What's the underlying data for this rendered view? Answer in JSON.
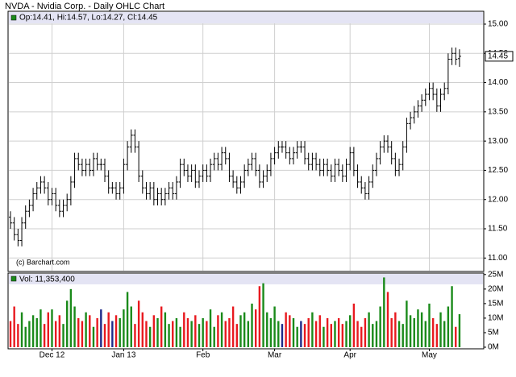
{
  "chart_data": [
    {
      "type": "ohlc",
      "title": "NVDA - Nvidia Corp. - Daily OHLC Chart",
      "legend": "Op:14.41, Hi:14.57, Lo:14.27, Cl:14.45",
      "watermark": "(c) Barchart.com",
      "color": "#000000",
      "grid": true,
      "categories": [
        null,
        null,
        null,
        null,
        null,
        null,
        null,
        null,
        null,
        null,
        null,
        "Dec 12",
        null,
        null,
        null,
        null,
        null,
        null,
        null,
        null,
        null,
        null,
        null,
        null,
        null,
        null,
        null,
        null,
        null,
        null,
        "Jan 13",
        null,
        null,
        null,
        null,
        null,
        null,
        null,
        null,
        null,
        null,
        null,
        null,
        null,
        null,
        null,
        null,
        null,
        null,
        null,
        null,
        "Feb",
        null,
        null,
        null,
        null,
        null,
        null,
        null,
        null,
        null,
        null,
        null,
        null,
        null,
        null,
        null,
        null,
        null,
        null,
        "Mar",
        null,
        null,
        null,
        null,
        null,
        null,
        null,
        null,
        null,
        null,
        null,
        null,
        null,
        null,
        null,
        null,
        null,
        null,
        null,
        "Apr",
        null,
        null,
        null,
        null,
        null,
        null,
        null,
        null,
        null,
        null,
        null,
        null,
        null,
        null,
        null,
        null,
        null,
        null,
        null,
        null,
        "May",
        null,
        null,
        null,
        null,
        null,
        null,
        null,
        null
      ],
      "open": [
        11.7,
        11.6,
        11.4,
        11.3,
        11.6,
        11.8,
        11.9,
        12.1,
        12.2,
        12.3,
        12.2,
        12.0,
        12.1,
        11.9,
        11.8,
        11.9,
        12.0,
        12.3,
        12.7,
        12.6,
        12.5,
        12.6,
        12.5,
        12.7,
        12.6,
        12.6,
        12.4,
        12.2,
        12.2,
        12.1,
        12.2,
        12.6,
        12.9,
        13.1,
        12.9,
        12.4,
        12.2,
        12.1,
        12.2,
        12.0,
        12.1,
        12.0,
        12.1,
        12.2,
        12.1,
        12.3,
        12.6,
        12.5,
        12.4,
        12.5,
        12.3,
        12.4,
        12.5,
        12.4,
        12.6,
        12.7,
        12.6,
        12.8,
        12.7,
        12.4,
        12.3,
        12.2,
        12.3,
        12.5,
        12.6,
        12.7,
        12.5,
        12.3,
        12.4,
        12.5,
        12.7,
        12.8,
        12.9,
        12.9,
        12.8,
        12.7,
        12.8,
        12.9,
        12.9,
        12.7,
        12.6,
        12.7,
        12.6,
        12.5,
        12.6,
        12.5,
        12.4,
        12.6,
        12.5,
        12.4,
        12.6,
        12.8,
        12.5,
        12.3,
        12.2,
        12.1,
        12.3,
        12.5,
        12.7,
        12.9,
        13.0,
        12.9,
        12.7,
        12.5,
        12.6,
        12.9,
        13.3,
        13.4,
        13.5,
        13.6,
        13.7,
        13.8,
        13.9,
        13.8,
        13.6,
        13.8,
        13.9,
        14.4,
        14.5,
        14.41
      ],
      "high": [
        11.8,
        11.7,
        11.5,
        11.7,
        11.9,
        12.0,
        12.2,
        12.3,
        12.4,
        12.4,
        12.3,
        12.2,
        12.2,
        12.0,
        12.0,
        12.1,
        12.4,
        12.8,
        12.8,
        12.7,
        12.7,
        12.7,
        12.8,
        12.8,
        12.7,
        12.7,
        12.5,
        12.3,
        12.3,
        12.3,
        12.7,
        13.0,
        13.2,
        13.2,
        13.0,
        12.5,
        12.3,
        12.3,
        12.3,
        12.2,
        12.2,
        12.2,
        12.3,
        12.3,
        12.4,
        12.7,
        12.7,
        12.6,
        12.6,
        12.6,
        12.5,
        12.6,
        12.6,
        12.7,
        12.8,
        12.8,
        12.9,
        12.9,
        12.8,
        12.5,
        12.4,
        12.4,
        12.6,
        12.7,
        12.8,
        12.8,
        12.6,
        12.5,
        12.6,
        12.8,
        12.9,
        13.0,
        13.0,
        13.0,
        12.9,
        12.9,
        13.0,
        13.0,
        13.0,
        12.8,
        12.8,
        12.8,
        12.7,
        12.7,
        12.7,
        12.6,
        12.7,
        12.7,
        12.6,
        12.7,
        12.9,
        12.9,
        12.6,
        12.4,
        12.3,
        12.4,
        12.6,
        12.8,
        13.0,
        13.1,
        13.1,
        13.0,
        12.8,
        12.7,
        13.0,
        13.4,
        13.5,
        13.6,
        13.7,
        13.8,
        13.9,
        14.0,
        14.0,
        13.9,
        13.9,
        14.0,
        14.5,
        14.6,
        14.6,
        14.57
      ],
      "low": [
        11.5,
        11.3,
        11.2,
        11.2,
        11.5,
        11.7,
        11.8,
        12.0,
        12.1,
        12.1,
        11.9,
        11.9,
        11.8,
        11.7,
        11.7,
        11.8,
        11.9,
        12.2,
        12.5,
        12.4,
        12.4,
        12.4,
        12.4,
        12.5,
        12.5,
        12.3,
        12.1,
        12.1,
        12.0,
        12.0,
        12.1,
        12.5,
        12.8,
        12.8,
        12.3,
        12.1,
        12.0,
        12.0,
        11.9,
        11.9,
        11.9,
        11.9,
        12.0,
        12.0,
        12.0,
        12.2,
        12.4,
        12.3,
        12.3,
        12.2,
        12.2,
        12.3,
        12.3,
        12.3,
        12.5,
        12.5,
        12.5,
        12.6,
        12.3,
        12.2,
        12.1,
        12.1,
        12.2,
        12.4,
        12.5,
        12.4,
        12.2,
        12.2,
        12.3,
        12.4,
        12.6,
        12.7,
        12.8,
        12.7,
        12.6,
        12.6,
        12.7,
        12.8,
        12.6,
        12.5,
        12.5,
        12.5,
        12.4,
        12.4,
        12.4,
        12.3,
        12.3,
        12.4,
        12.3,
        12.3,
        12.5,
        12.4,
        12.2,
        12.1,
        12.0,
        12.0,
        12.2,
        12.4,
        12.6,
        12.8,
        12.8,
        12.6,
        12.4,
        12.4,
        12.5,
        12.8,
        13.2,
        13.3,
        13.4,
        13.5,
        13.6,
        13.7,
        13.7,
        13.5,
        13.5,
        13.7,
        13.8,
        14.3,
        14.3,
        14.27
      ],
      "close": [
        11.6,
        11.4,
        11.3,
        11.6,
        11.8,
        11.9,
        12.1,
        12.2,
        12.3,
        12.2,
        12.0,
        12.1,
        11.9,
        11.8,
        11.9,
        12.0,
        12.3,
        12.7,
        12.6,
        12.5,
        12.6,
        12.5,
        12.7,
        12.6,
        12.6,
        12.4,
        12.2,
        12.2,
        12.1,
        12.2,
        12.6,
        12.9,
        13.1,
        12.9,
        12.4,
        12.2,
        12.1,
        12.2,
        12.0,
        12.1,
        12.0,
        12.1,
        12.2,
        12.1,
        12.3,
        12.6,
        12.5,
        12.4,
        12.5,
        12.3,
        12.4,
        12.5,
        12.4,
        12.6,
        12.7,
        12.6,
        12.8,
        12.7,
        12.4,
        12.3,
        12.2,
        12.3,
        12.5,
        12.6,
        12.7,
        12.5,
        12.3,
        12.4,
        12.5,
        12.7,
        12.8,
        12.9,
        12.9,
        12.8,
        12.7,
        12.8,
        12.9,
        12.9,
        12.7,
        12.6,
        12.7,
        12.6,
        12.5,
        12.6,
        12.5,
        12.4,
        12.6,
        12.5,
        12.4,
        12.6,
        12.8,
        12.5,
        12.3,
        12.2,
        12.1,
        12.3,
        12.5,
        12.7,
        12.9,
        13.0,
        12.9,
        12.7,
        12.5,
        12.6,
        12.9,
        13.3,
        13.4,
        13.5,
        13.6,
        13.7,
        13.8,
        13.9,
        13.8,
        13.6,
        13.8,
        13.9,
        14.4,
        14.5,
        14.4,
        14.45
      ],
      "last_price": 14.45,
      "ylim": [
        10.77,
        15.22
      ],
      "yticks": [
        {
          "value": 11,
          "label": "11.00"
        },
        {
          "value": 11.5,
          "label": "11.50"
        },
        {
          "value": 12,
          "label": "12.00"
        },
        {
          "value": 12.5,
          "label": "12.50"
        },
        {
          "value": 13,
          "label": "13.00"
        },
        {
          "value": 13.5,
          "label": "13.50"
        },
        {
          "value": 14,
          "label": "14.00"
        },
        {
          "value": 14.5,
          "label": "14.50"
        },
        {
          "value": 15,
          "label": "15.00"
        }
      ]
    },
    {
      "type": "bar",
      "legend": "Vol: 11,353,400",
      "grid": true,
      "up_color": "#1a8a1a",
      "down_color": "#e8191f",
      "unchanged_color": "#1f2a8a",
      "values": [
        9,
        14,
        8,
        12,
        7,
        9,
        11,
        10,
        13,
        8,
        12,
        13,
        9,
        11,
        8,
        16,
        20,
        14,
        10,
        9,
        12,
        11,
        7,
        10,
        13,
        8,
        12,
        9,
        11,
        10,
        13,
        19,
        14,
        8,
        16,
        12,
        9,
        7,
        11,
        10,
        14,
        12,
        8,
        9,
        10,
        7,
        12,
        10,
        9,
        11,
        8,
        10,
        9,
        13,
        7,
        11,
        12,
        9,
        10,
        14,
        8,
        11,
        12,
        9,
        15,
        13,
        21,
        22,
        12,
        10,
        14,
        9,
        8,
        12,
        11,
        10,
        7,
        9,
        8,
        10,
        12,
        9,
        11,
        7,
        10,
        8,
        9,
        10,
        8,
        9,
        11,
        15,
        9,
        7,
        10,
        12,
        8,
        9,
        14,
        24,
        19,
        10,
        12,
        9,
        8,
        16,
        11,
        10,
        13,
        12,
        9,
        15,
        10,
        8,
        12,
        9,
        14,
        21,
        7,
        11.3534
      ],
      "ylim": [
        0,
        25.5
      ],
      "yticks": [
        {
          "value": 0,
          "label": "0M"
        },
        {
          "value": 5,
          "label": "5M"
        },
        {
          "value": 10,
          "label": "10M"
        },
        {
          "value": 15,
          "label": "15M"
        },
        {
          "value": 20,
          "label": "20M"
        },
        {
          "value": 25,
          "label": "25M"
        }
      ]
    }
  ]
}
